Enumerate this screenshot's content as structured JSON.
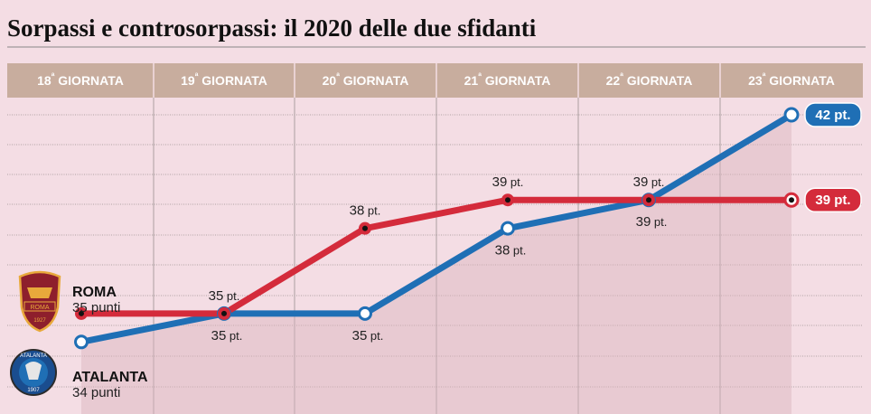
{
  "title": "Sorpassi e controsorpassi: il 2020 delle due sfidanti",
  "chart_data": {
    "type": "line",
    "categories": [
      "18ª GIORNATA",
      "19ª GIORNATA",
      "20ª GIORNATA",
      "21ª GIORNATA",
      "22ª GIORNATA",
      "23ª GIORNATA"
    ],
    "ylim": [
      33.5,
      42
    ],
    "grid": true,
    "series": [
      {
        "name": "ROMA",
        "color": "#d42b3b",
        "values": [
          35,
          35,
          38,
          39,
          39,
          39
        ],
        "point_labels": [
          "35 punti",
          "35 pt.",
          "38 pt.",
          "39 pt.",
          "39 pt.",
          "39 pt."
        ],
        "start_label": "35 punti",
        "end_label": "39 pt."
      },
      {
        "name": "ATALANTA",
        "color": "#1f6fb5",
        "values": [
          34,
          35,
          35,
          38,
          39,
          42
        ],
        "point_labels": [
          "34 punti",
          "35 pt.",
          "35 pt.",
          "38 pt.",
          "39 pt.",
          "42 pt."
        ],
        "start_label": "34 punti",
        "end_label": "42 pt."
      }
    ],
    "logos": {
      "roma": {
        "lines": [
          "ROMA",
          "1927"
        ],
        "icon": "roma-crest-icon"
      },
      "atalanta": {
        "lines": [
          "ATALANTA",
          "1907"
        ],
        "icon": "atalanta-crest-icon"
      }
    }
  }
}
